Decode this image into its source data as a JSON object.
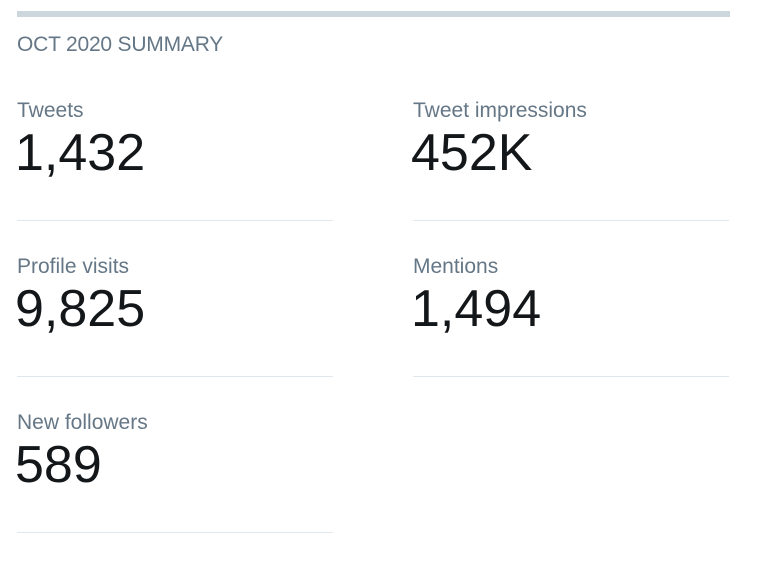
{
  "header": {
    "title": "OCT 2020 SUMMARY"
  },
  "stats": [
    {
      "label": "Tweets",
      "value": "1,432"
    },
    {
      "label": "Tweet impressions",
      "value": "452K"
    },
    {
      "label": "Profile visits",
      "value": "9,825"
    },
    {
      "label": "Mentions",
      "value": "1,494"
    },
    {
      "label": "New followers",
      "value": "589"
    }
  ]
}
